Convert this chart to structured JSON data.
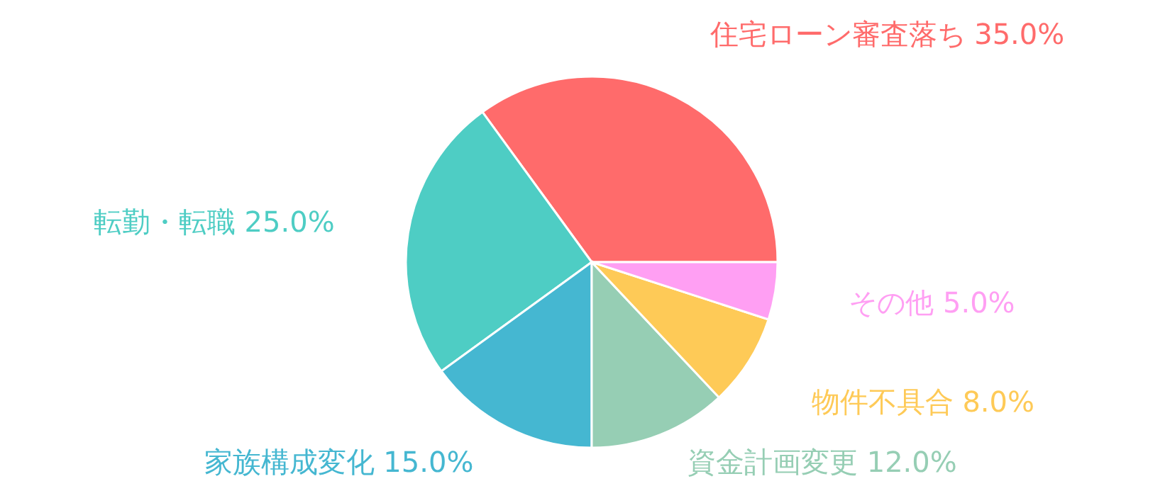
{
  "chart_data": {
    "type": "pie",
    "categories": [
      "住宅ローン審査落ち",
      "転勤・転職",
      "家族構成変化",
      "資金計画変更",
      "物件不具合",
      "その他"
    ],
    "values": [
      35,
      25,
      15,
      12,
      8,
      5
    ],
    "colors": [
      "#ff6b6b",
      "#4ecdc4",
      "#45b7d1",
      "#96ceb4",
      "#feca57",
      "#ff9ff3"
    ],
    "value_labels": [
      "35.0%",
      "25.0%",
      "15.0%",
      "12.0%",
      "8.0%",
      "5.0%"
    ],
    "legend": false
  }
}
